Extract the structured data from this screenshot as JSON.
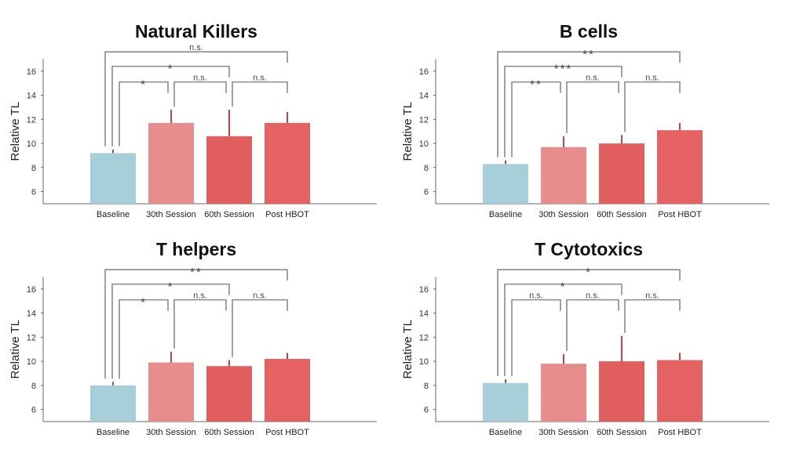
{
  "colors": {
    "baseline": "#a6cfda",
    "session30": "#e88d8d",
    "session60": "#e25d5d",
    "post": "#e56262",
    "error": "#c94040",
    "bracket": "#8a8a8a",
    "axis": "#666666"
  },
  "chart_data": [
    {
      "type": "bar",
      "title": "Natural Killers",
      "ylabel": "Relative TL",
      "ylim": [
        5,
        18
      ],
      "yticks": [
        "6",
        "8",
        "10",
        "12",
        "14",
        "16"
      ],
      "categories": [
        "Baseline",
        "30th Session",
        "60th Session",
        "Post HBOT"
      ],
      "values": [
        9.2,
        11.7,
        10.6,
        11.7
      ],
      "errors": [
        0.3,
        1.1,
        2.2,
        0.9
      ],
      "brackets": [
        {
          "from": 0,
          "to": 3,
          "label": "n.s."
        },
        {
          "from": 0,
          "to": 2,
          "label": "*"
        },
        {
          "from": 0,
          "to": 1,
          "label": "*"
        },
        {
          "from": 1,
          "to": 2,
          "label": "n.s."
        },
        {
          "from": 2,
          "to": 3,
          "label": "n.s."
        }
      ]
    },
    {
      "type": "bar",
      "title": "B cells",
      "ylabel": "Relative TL",
      "ylim": [
        5,
        18
      ],
      "yticks": [
        "6",
        "8",
        "10",
        "12",
        "14",
        "16"
      ],
      "categories": [
        "Baseline",
        "30th Session",
        "60th Session",
        "Post HBOT"
      ],
      "values": [
        8.3,
        9.7,
        10.0,
        11.1
      ],
      "errors": [
        0.3,
        0.9,
        0.7,
        0.6
      ],
      "brackets": [
        {
          "from": 0,
          "to": 3,
          "label": "**"
        },
        {
          "from": 0,
          "to": 2,
          "label": "***"
        },
        {
          "from": 0,
          "to": 1,
          "label": "**"
        },
        {
          "from": 1,
          "to": 2,
          "label": "n.s."
        },
        {
          "from": 2,
          "to": 3,
          "label": "n.s."
        }
      ]
    },
    {
      "type": "bar",
      "title": "T helpers",
      "ylabel": "Relative TL",
      "ylim": [
        5,
        18
      ],
      "yticks": [
        "6",
        "8",
        "10",
        "12",
        "14",
        "16"
      ],
      "categories": [
        "Baseline",
        "30th Session",
        "60th Session",
        "Post HBOT"
      ],
      "values": [
        8.0,
        9.9,
        9.6,
        10.2
      ],
      "errors": [
        0.3,
        0.9,
        0.5,
        0.5
      ],
      "brackets": [
        {
          "from": 0,
          "to": 3,
          "label": "**"
        },
        {
          "from": 0,
          "to": 2,
          "label": "*"
        },
        {
          "from": 0,
          "to": 1,
          "label": "*"
        },
        {
          "from": 1,
          "to": 2,
          "label": "n.s."
        },
        {
          "from": 2,
          "to": 3,
          "label": "n.s."
        }
      ]
    },
    {
      "type": "bar",
      "title": "T Cytotoxics",
      "ylabel": "Relative TL",
      "ylim": [
        5,
        18
      ],
      "yticks": [
        "6",
        "8",
        "10",
        "12",
        "14",
        "16"
      ],
      "categories": [
        "Baseline",
        "30th Session",
        "60th Session",
        "Post HBOT"
      ],
      "values": [
        8.2,
        9.8,
        10.0,
        10.1
      ],
      "errors": [
        0.3,
        0.8,
        2.1,
        0.6
      ],
      "brackets": [
        {
          "from": 0,
          "to": 3,
          "label": "*"
        },
        {
          "from": 0,
          "to": 2,
          "label": "*"
        },
        {
          "from": 0,
          "to": 1,
          "label": "n.s."
        },
        {
          "from": 1,
          "to": 2,
          "label": "n.s."
        },
        {
          "from": 2,
          "to": 3,
          "label": "n.s."
        }
      ]
    }
  ]
}
